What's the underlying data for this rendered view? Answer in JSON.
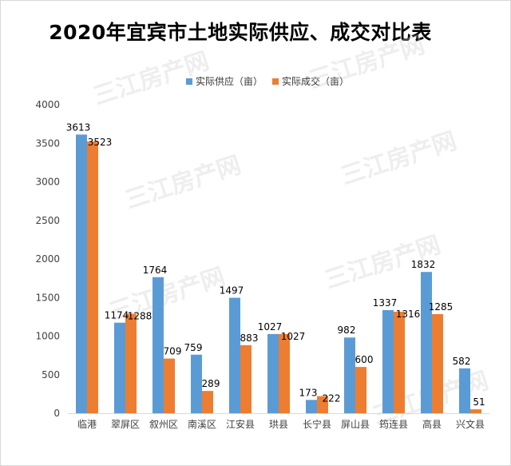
{
  "chart_data": {
    "type": "bar",
    "title": "2020年宜宾市土地实际供应、成交对比表",
    "categories": [
      "临港",
      "翠屏区",
      "叙州区",
      "南溪区",
      "江安县",
      "珙县",
      "长宁县",
      "屏山县",
      "筠连县",
      "高县",
      "兴文县"
    ],
    "series": [
      {
        "name": "实际供应（亩）",
        "color": "#5b9bd5",
        "values": [
          3613,
          1174,
          1764,
          759,
          1497,
          1027,
          173,
          982,
          1337,
          1832,
          582
        ]
      },
      {
        "name": "实际成交（亩）",
        "color": "#ed7d31",
        "values": [
          3523,
          1288,
          709,
          289,
          883,
          1027,
          222,
          600,
          1316,
          1285,
          51
        ]
      }
    ],
    "ylim": [
      0,
      4000
    ],
    "yticks": [
      0,
      500,
      1000,
      1500,
      2000,
      2500,
      3000,
      3500,
      4000
    ],
    "grid": false,
    "legend_position": "top",
    "watermark": "三江房产网"
  }
}
